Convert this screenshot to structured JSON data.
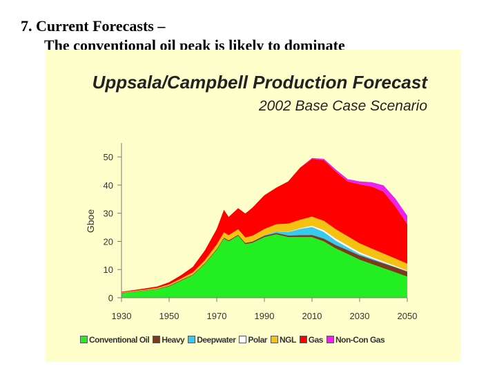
{
  "slide": {
    "title_line1": "7. Current Forecasts –",
    "title_line2": "The conventional oil peak is likely to dominate"
  },
  "chart_data": {
    "type": "area",
    "stacked": true,
    "title": "Uppsala/Campbell Production Forecast",
    "subtitle": "2002 Base Case Scenario",
    "ylabel": "Gboe",
    "xlabel": "",
    "xlim": [
      1930,
      2050
    ],
    "ylim": [
      0,
      52
    ],
    "x_ticks": [
      "1930",
      "1950",
      "1970",
      "1990",
      "2010",
      "2030",
      "2050"
    ],
    "y_ticks": [
      "0",
      "10",
      "20",
      "30",
      "40",
      "50"
    ],
    "x": [
      1930,
      1935,
      1940,
      1945,
      1950,
      1955,
      1960,
      1965,
      1970,
      1973,
      1975,
      1979,
      1982,
      1985,
      1990,
      1995,
      2000,
      2005,
      2010,
      2015,
      2020,
      2025,
      2030,
      2035,
      2040,
      2045,
      2050
    ],
    "series": [
      {
        "name": "Conventional Oil",
        "color": "#22ee22",
        "values": [
          1.5,
          2,
          2.5,
          3,
          4,
          6,
          8,
          12,
          17,
          21,
          20,
          22,
          19,
          19.5,
          21.5,
          22.5,
          21.5,
          21.5,
          21.5,
          20,
          17.5,
          15.5,
          13.5,
          12,
          10.5,
          9,
          7.5
        ]
      },
      {
        "name": "Heavy",
        "color": "#7a3b1a",
        "values": [
          0.2,
          0.2,
          0.2,
          0.2,
          0.3,
          0.3,
          0.3,
          0.3,
          0.4,
          0.4,
          0.4,
          0.4,
          0.5,
          0.5,
          0.5,
          0.5,
          0.6,
          0.7,
          0.8,
          1,
          1.2,
          1.4,
          1.5,
          1.6,
          1.7,
          1.8,
          1.8
        ]
      },
      {
        "name": "Deepwater",
        "color": "#33ccee",
        "values": [
          0,
          0,
          0,
          0,
          0,
          0,
          0,
          0,
          0,
          0,
          0,
          0,
          0,
          0,
          0.2,
          0.5,
          1.2,
          2.2,
          2.8,
          2.3,
          1.5,
          0.9,
          0.5,
          0.3,
          0.2,
          0.1,
          0.1
        ]
      },
      {
        "name": "Polar",
        "color": "#ffffff",
        "values": [
          0,
          0,
          0,
          0,
          0,
          0,
          0,
          0,
          0,
          0,
          0,
          0,
          0,
          0,
          0,
          0.1,
          0.2,
          0.3,
          0.5,
          0.7,
          0.8,
          0.8,
          0.7,
          0.6,
          0.5,
          0.4,
          0.3
        ]
      },
      {
        "name": "NGL",
        "color": "#f5c211",
        "values": [
          0.2,
          0.2,
          0.2,
          0.3,
          0.4,
          0.5,
          0.7,
          1,
          1.5,
          1.8,
          1.8,
          1.9,
          1.9,
          2,
          2.2,
          2.5,
          2.8,
          3,
          3.2,
          3.3,
          3.3,
          3.2,
          3.1,
          3,
          2.8,
          2.6,
          2.4
        ]
      },
      {
        "name": "Gas",
        "color": "#ff0000",
        "values": [
          0.2,
          0.3,
          0.4,
          0.5,
          0.8,
          1.2,
          2,
          3.5,
          5.5,
          8,
          6.5,
          7.5,
          8.5,
          10,
          12,
          13,
          15,
          18.5,
          20.5,
          21.5,
          20.5,
          19.5,
          21,
          22,
          22,
          18.5,
          14
        ]
      },
      {
        "name": "Non-Con Gas",
        "color": "#ee22ee",
        "values": [
          0,
          0,
          0,
          0,
          0,
          0,
          0,
          0,
          0,
          0,
          0,
          0,
          0,
          0,
          0,
          0,
          0,
          0,
          0.3,
          0.5,
          0.7,
          0.8,
          1,
          1.5,
          2.2,
          2.8,
          3
        ]
      }
    ],
    "legend_position": "bottom",
    "grid": false
  }
}
